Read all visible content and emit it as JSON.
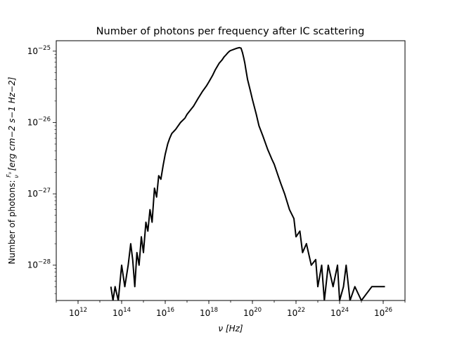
{
  "chart_data": {
    "type": "line",
    "title": "Number of photons per frequency after IC scattering",
    "xlabel": "ν [Hz]",
    "ylabel_prefix": "Number of photons: ",
    "ylabel_frac_num": "F",
    "ylabel_frac_sub": "ν",
    "ylabel_frac_den": "ν",
    "ylabel_units": "[erg cm−2 s−1 Hz−2]",
    "xscale": "log",
    "yscale": "log",
    "xlim": [
      100000000000.0,
      1e+27
    ],
    "ylim": [
      3.2e-29,
      1.4e-25
    ],
    "xticks": [
      {
        "base": "10",
        "exp": "12",
        "value": 1000000000000.0
      },
      {
        "base": "10",
        "exp": "14",
        "value": 100000000000000.0
      },
      {
        "base": "10",
        "exp": "16",
        "value": 1e+16
      },
      {
        "base": "10",
        "exp": "18",
        "value": 1e+18
      },
      {
        "base": "10",
        "exp": "20",
        "value": 1e+20
      },
      {
        "base": "10",
        "exp": "22",
        "value": 1e+22
      },
      {
        "base": "10",
        "exp": "24",
        "value": 1e+24
      },
      {
        "base": "10",
        "exp": "26",
        "value": 1e+26
      }
    ],
    "yticks": [
      {
        "base": "10",
        "exp": "−28",
        "value": 1e-28
      },
      {
        "base": "10",
        "exp": "−27",
        "value": 1e-27
      },
      {
        "base": "10",
        "exp": "−26",
        "value": 1e-26
      },
      {
        "base": "10",
        "exp": "−25",
        "value": 1e-25
      }
    ],
    "grid": false,
    "line_color": "#000000",
    "series": [
      {
        "x": [
          32000000000000.0,
          40000000000000.0,
          50000000000000.0,
          70000000000000.0,
          100000000000000.0,
          140000000000000.0,
          200000000000000.0,
          260000000000000.0,
          320000000000000.0,
          400000000000000.0,
          500000000000000.0,
          630000000000000.0,
          800000000000000.0,
          1000000000000000.0,
          1300000000000000.0,
          1600000000000000.0,
          2000000000000000.0,
          2500000000000000.0,
          3200000000000000.0,
          4000000000000000.0,
          5000000000000000.0,
          6300000000000000.0,
          8000000000000000.0,
          1e+16,
          1.3e+16,
          1.6e+16,
          2e+16,
          3e+16,
          5e+16,
          8e+16,
          1e+17,
          2e+17,
          3e+17,
          5e+17,
          8e+17,
          1e+18,
          1.5e+18,
          2e+18,
          3e+18,
          4e+18,
          5e+18,
          6e+18,
          7e+18,
          8e+18,
          9e+18,
          1e+19,
          1.5e+19,
          2e+19,
          2.5e+19,
          3e+19,
          3.5e+19,
          4e+19,
          4.5e+19,
          5e+19,
          6e+19,
          8e+19,
          1e+20,
          1.5e+20,
          2e+20,
          3e+20,
          5e+20,
          8e+20,
          1e+21,
          1.5e+21,
          2e+21,
          3e+21,
          5e+21,
          8e+21,
          1e+22,
          1.5e+22,
          2e+22,
          3e+22,
          5e+22,
          8e+22,
          1e+23,
          1.5e+23,
          2e+23,
          3e+23,
          5e+23,
          8e+23,
          1e+24,
          1.5e+24,
          2e+24,
          3e+24,
          5e+24,
          1e+25,
          3e+25,
          1.2e+26
        ],
        "y": [
          5e-29,
          3.2e-29,
          5e-29,
          3.2e-29,
          1e-28,
          5e-29,
          1e-28,
          2e-28,
          1.2e-28,
          5e-29,
          1.5e-28,
          1e-28,
          2.5e-28,
          1.5e-28,
          4e-28,
          3e-28,
          6e-28,
          4e-28,
          1.2e-27,
          9e-28,
          1.8e-27,
          1.6e-27,
          2.5e-27,
          3.6e-27,
          5e-27,
          6e-27,
          7e-27,
          8e-27,
          1e-26,
          1.15e-26,
          1.3e-26,
          1.7e-26,
          2.1e-26,
          2.7e-26,
          3.3e-26,
          3.7e-26,
          4.6e-26,
          5.5e-26,
          6.8e-26,
          7.5e-26,
          8.3e-26,
          8.8e-26,
          9.3e-26,
          9.7e-26,
          1e-25,
          1.02e-25,
          1.07e-25,
          1.1e-25,
          1.12e-25,
          1.1e-25,
          9.5e-26,
          8e-26,
          6.8e-26,
          5.5e-26,
          4e-26,
          2.8e-26,
          2.1e-26,
          1.3e-26,
          9e-27,
          6.5e-27,
          4.2e-27,
          3e-27,
          2.6e-27,
          1.8e-27,
          1.4e-27,
          1e-27,
          6e-28,
          4.5e-28,
          2.5e-28,
          3e-28,
          1.5e-28,
          2e-28,
          1e-28,
          1.2e-28,
          5e-29,
          1e-28,
          3.2e-29,
          1e-28,
          5e-29,
          1e-28,
          3.2e-29,
          5e-29,
          1e-28,
          3.2e-29,
          5e-29,
          3.2e-29,
          5e-29,
          5e-29
        ]
      }
    ]
  }
}
